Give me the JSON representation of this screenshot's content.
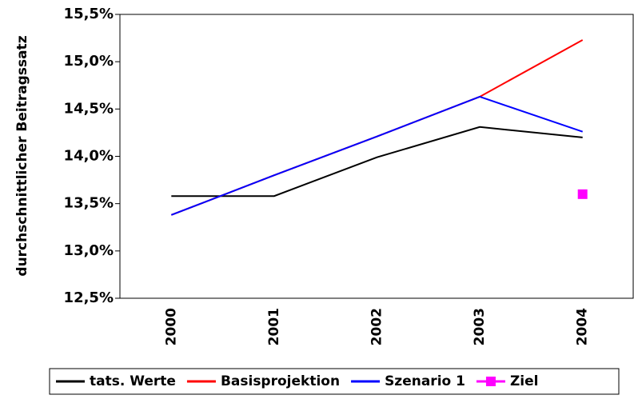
{
  "chart_data": {
    "type": "line",
    "y_label": "durchschnittlicher Beitragssatz",
    "categories": [
      "2000",
      "2001",
      "2002",
      "2003",
      "2004"
    ],
    "series": [
      {
        "name": "tats. Werte",
        "color": "#000000",
        "values": [
          13.58,
          13.58,
          13.99,
          14.31,
          14.2
        ]
      },
      {
        "name": "Basisprojektion",
        "color": "#ff0000",
        "values": [
          13.38,
          13.8,
          14.21,
          14.63,
          15.23
        ]
      },
      {
        "name": "Szenario 1",
        "color": "#0000ff",
        "values": [
          13.38,
          13.8,
          14.21,
          14.63,
          14.26
        ]
      },
      {
        "name": "Ziel",
        "color": "#ff00ff",
        "marker": "square",
        "values": [
          null,
          null,
          null,
          null,
          13.6
        ]
      }
    ],
    "ylim": [
      12.5,
      15.5
    ],
    "yticks": [
      {
        "value": 12.5,
        "label": "12,5%"
      },
      {
        "value": 13,
        "label": "13,0%"
      },
      {
        "value": 13.5,
        "label": "13,5%"
      },
      {
        "value": 14,
        "label": "14,0%"
      },
      {
        "value": 14.5,
        "label": "14,5%"
      },
      {
        "value": 15,
        "label": "15,0%"
      },
      {
        "value": 15.5,
        "label": "15,5%"
      }
    ],
    "legend": "bottom"
  }
}
